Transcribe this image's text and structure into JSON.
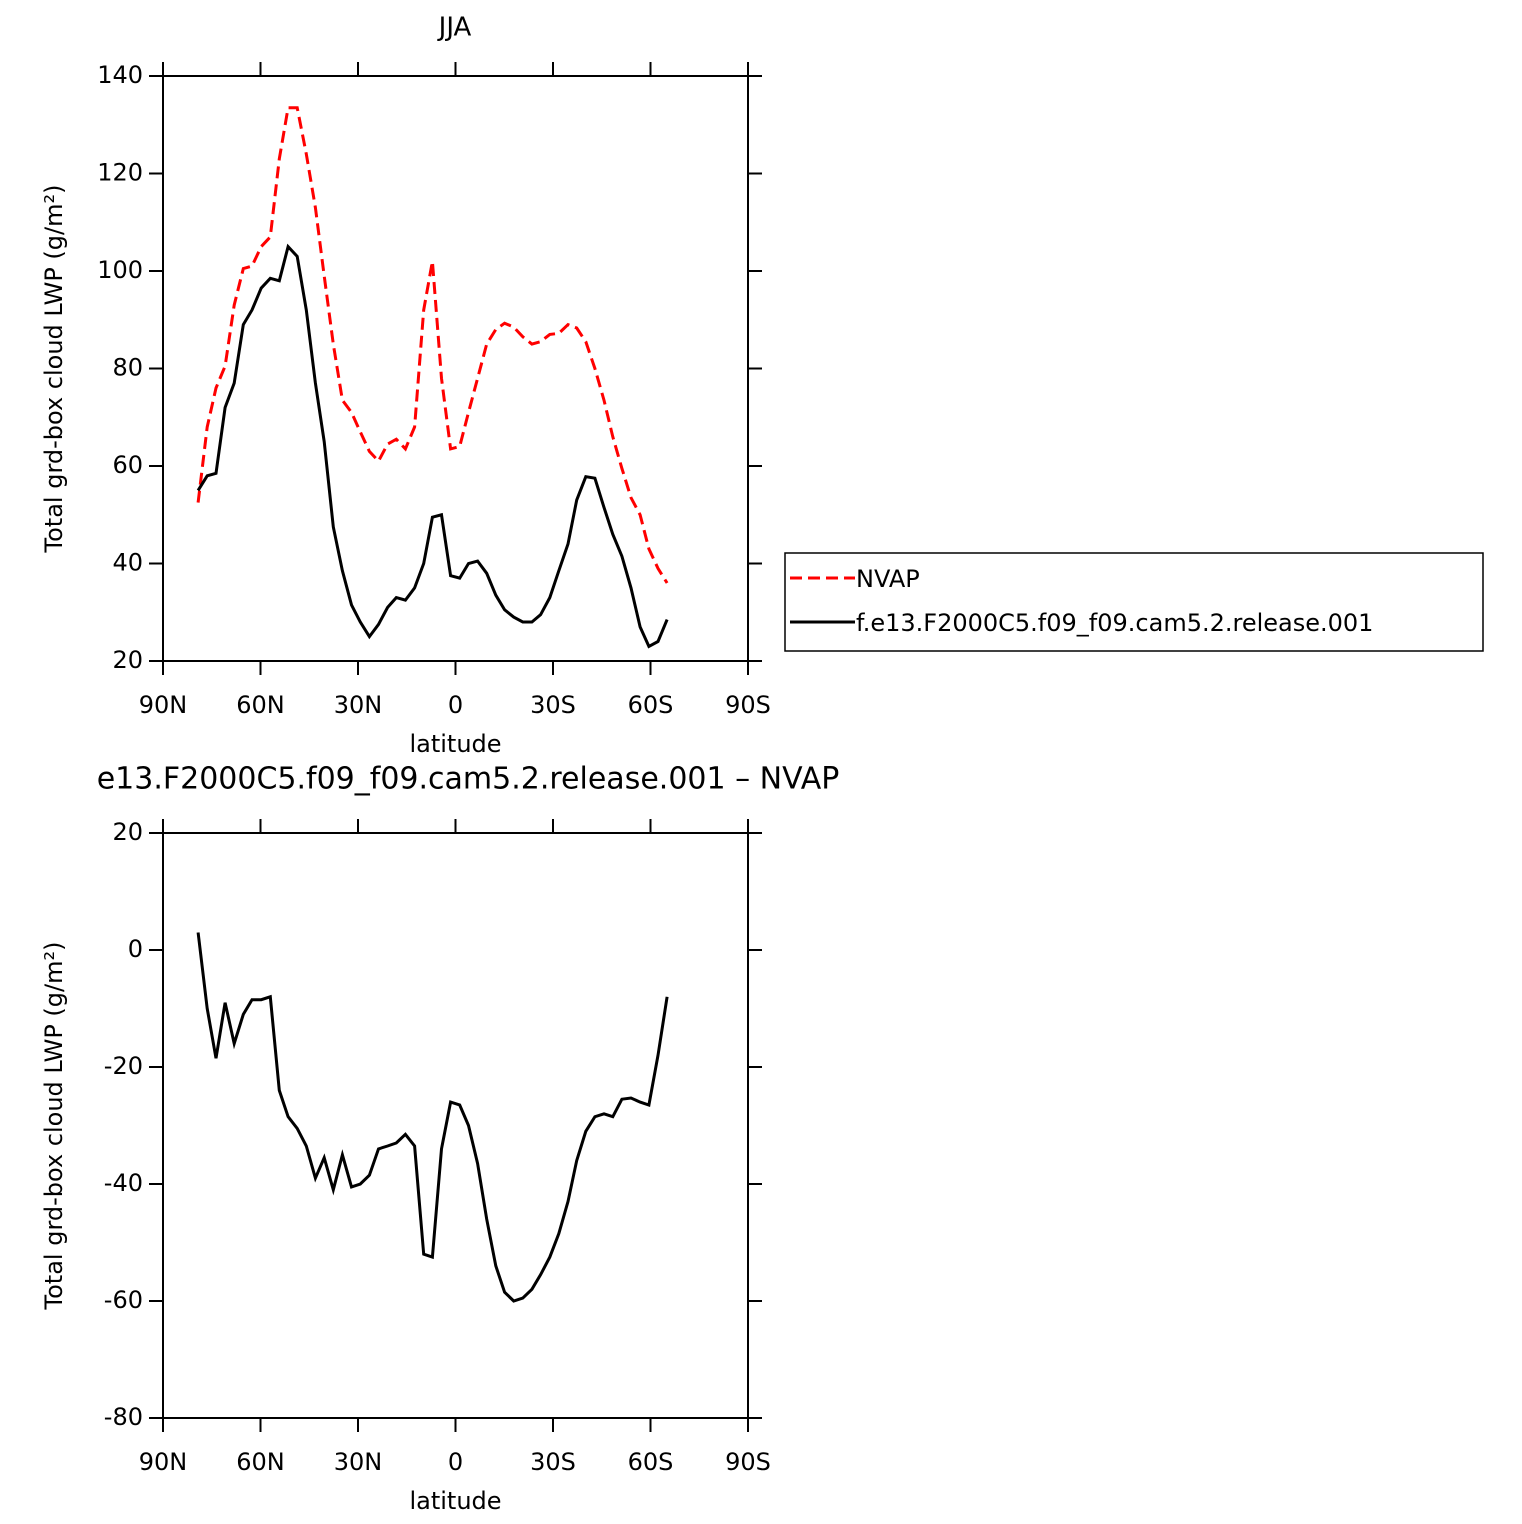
{
  "chart_data": [
    {
      "type": "line",
      "title": "JJA",
      "xlabel": "latitude",
      "ylabel": "Total grd-box cloud LWP (g/m²)",
      "xlim": [
        90,
        -90
      ],
      "xticks": [
        {
          "value": 90,
          "label": "90N"
        },
        {
          "value": 60,
          "label": "60N"
        },
        {
          "value": 30,
          "label": "30N"
        },
        0,
        {
          "value": -30,
          "label": "30S"
        },
        {
          "value": -60,
          "label": "60S"
        },
        {
          "value": -90,
          "label": "90S"
        }
      ],
      "ylim": [
        20,
        140
      ],
      "yticks": [
        20,
        40,
        60,
        80,
        100,
        120,
        140
      ],
      "legend": "right",
      "x": [
        79.2,
        76.4,
        73.7,
        70.9,
        68.1,
        65.3,
        62.6,
        59.8,
        57.0,
        54.2,
        51.5,
        48.7,
        45.9,
        43.1,
        40.4,
        37.6,
        34.8,
        32.0,
        29.3,
        26.5,
        23.7,
        20.9,
        18.2,
        15.4,
        12.6,
        9.8,
        7.1,
        4.3,
        1.5,
        -1.3,
        -4.0,
        -6.8,
        -9.6,
        -12.4,
        -15.1,
        -17.9,
        -20.7,
        -23.5,
        -26.2,
        -29.0,
        -31.8,
        -34.6,
        -37.3,
        -40.1,
        -42.9,
        -45.7,
        -48.4,
        -51.2,
        -54.0,
        -56.8,
        -59.5,
        -62.3,
        -65.1
      ],
      "series": [
        {
          "name": "NVAP",
          "color": "#ff0000",
          "style": "dashed",
          "values": [
            52.5,
            68,
            76,
            80.5,
            93,
            100.5,
            101,
            105,
            107,
            123,
            133.5,
            133.5,
            124,
            113,
            99,
            85,
            73.5,
            71,
            67,
            63,
            61,
            64.5,
            65.5,
            63.5,
            68,
            92,
            102,
            78,
            63.5,
            64,
            71,
            78,
            85,
            88,
            89.3,
            88.5,
            86.5,
            85,
            85.5,
            87,
            87.2,
            89,
            88.3,
            85.5,
            80,
            73.5,
            66,
            59.5,
            53.5,
            50,
            43,
            39,
            36
          ]
        },
        {
          "name": "f.e13.F2000C5.f09_f09.cam5.2.release.001",
          "color": "#000000",
          "style": "solid",
          "values": [
            55,
            58,
            58.5,
            72,
            77,
            89,
            92,
            96.5,
            98.5,
            98,
            105,
            103,
            92,
            77,
            65,
            47.5,
            38.5,
            31.5,
            28,
            25,
            27.5,
            31,
            33,
            32.5,
            35,
            40,
            49.5,
            50,
            37.5,
            37,
            40,
            40.5,
            38,
            33.5,
            30.5,
            29,
            28,
            28,
            29.5,
            33,
            38.5,
            44,
            53,
            57.8,
            57.5,
            51.5,
            46,
            41.5,
            35,
            27,
            23,
            24,
            28.5
          ]
        }
      ]
    },
    {
      "type": "line",
      "title": "e13.F2000C5.f09_f09.cam5.2.release.001 – NVAP",
      "xlabel": "latitude",
      "ylabel": "Total grd-box cloud LWP (g/m²)",
      "xlim": [
        90,
        -90
      ],
      "xticks": [
        {
          "value": 90,
          "label": "90N"
        },
        {
          "value": 60,
          "label": "60N"
        },
        {
          "value": 30,
          "label": "30N"
        },
        0,
        {
          "value": -30,
          "label": "30S"
        },
        {
          "value": -60,
          "label": "60S"
        },
        {
          "value": -90,
          "label": "90S"
        }
      ],
      "ylim": [
        -80,
        20
      ],
      "yticks": [
        -80,
        -60,
        -40,
        -20,
        0,
        20
      ],
      "x": [
        79.2,
        76.4,
        73.7,
        70.9,
        68.1,
        65.3,
        62.6,
        59.8,
        57.0,
        54.2,
        51.5,
        48.7,
        45.9,
        43.1,
        40.4,
        37.6,
        34.8,
        32.0,
        29.3,
        26.5,
        23.7,
        20.9,
        18.2,
        15.4,
        12.6,
        9.8,
        7.1,
        4.3,
        1.5,
        -1.3,
        -4.0,
        -6.8,
        -9.6,
        -12.4,
        -15.1,
        -17.9,
        -20.7,
        -23.5,
        -26.2,
        -29.0,
        -31.8,
        -34.6,
        -37.3,
        -40.1,
        -42.9,
        -45.7,
        -48.4,
        -51.2,
        -54.0,
        -56.8,
        -59.5,
        -62.3,
        -65.1
      ],
      "color": "#000000",
      "values": [
        3,
        -10,
        -18.5,
        -9,
        -16,
        -11,
        -8.5,
        -8.5,
        -8,
        -24,
        -28.5,
        -30.5,
        -33.5,
        -39,
        -35.5,
        -41,
        -35,
        -40.5,
        -40,
        -38.5,
        -34,
        -33.5,
        -33,
        -31.5,
        -33.5,
        -52,
        -52.5,
        -34,
        -26,
        -26.5,
        -30,
        -36.5,
        -46,
        -54,
        -58.5,
        -60,
        -59.5,
        -58,
        -55.5,
        -52.5,
        -48.5,
        -43,
        -36,
        -31,
        -28.5,
        -28,
        -28.5,
        -25.5,
        -25.3,
        -26,
        -26.5,
        -18,
        -8
      ]
    }
  ]
}
